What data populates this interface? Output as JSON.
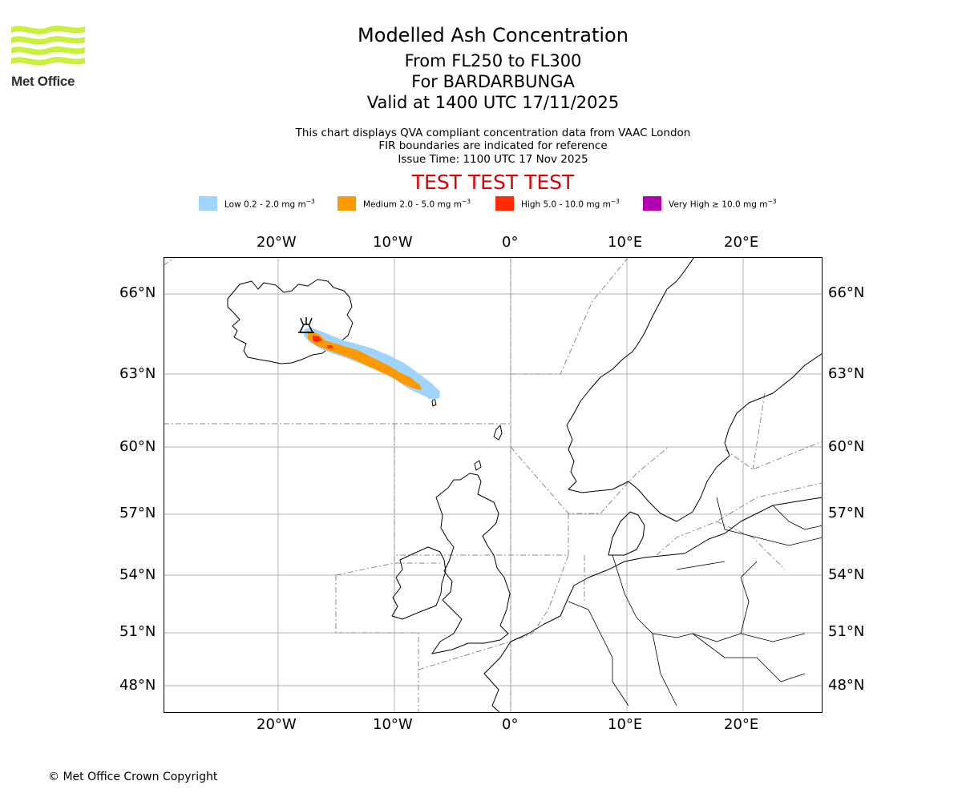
{
  "logo": {
    "text": "Met Office",
    "colors": {
      "waves": "#c8f03c"
    }
  },
  "header": {
    "title": "Modelled Ash Concentration",
    "level_range": "From FL250 to FL300",
    "volcano": "For BARDARBUNGA",
    "valid_time": "Valid at 1400 UTC 17/11/2025",
    "note_qva": "This chart displays QVA compliant concentration data from VAAC London",
    "note_fir": "FIR boundaries are indicated for reference",
    "issue_time": "Issue Time: 1100 UTC 17 Nov 2025",
    "test_banner": "TEST TEST TEST"
  },
  "legend": [
    {
      "label": "Low 0.2 - 2.0 mg m",
      "color": "#9fd4ff"
    },
    {
      "label": "Medium 2.0 - 5.0 mg m",
      "color": "#ff9900"
    },
    {
      "label": "High 5.0 - 10.0 mg m",
      "color": "#ff2a00"
    },
    {
      "label": "Very High  ≥  10.0 mg m",
      "color": "#b000b0"
    }
  ],
  "legend_unit_exponent": "−3",
  "map": {
    "lon_labels": [
      "20°W",
      "10°W",
      "0°",
      "10°E",
      "20°E"
    ],
    "lat_labels": [
      "66°N",
      "63°N",
      "60°N",
      "57°N",
      "54°N",
      "51°N",
      "48°N"
    ],
    "volcano_marker": "volcano-symbol"
  },
  "footer": {
    "copyright": "© Met Office Crown Copyright"
  }
}
